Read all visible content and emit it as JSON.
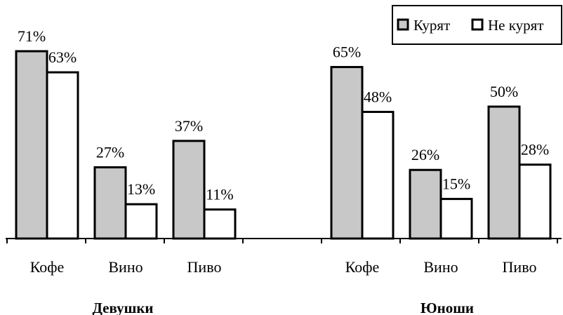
{
  "chart_data": {
    "type": "bar",
    "title": "",
    "xlabel": "",
    "ylabel": "",
    "ylim": [
      0,
      100
    ],
    "grid": false,
    "legend_position": "top-right",
    "groups": [
      {
        "name": "Девушки",
        "categories": [
          "Кофе",
          "Вино",
          "Пиво"
        ],
        "series": [
          {
            "name": "Курят",
            "values": [
              71,
              27,
              37
            ],
            "labels": [
              "71%",
              "27%",
              "37%"
            ]
          },
          {
            "name": "Не курят",
            "values": [
              63,
              13,
              11
            ],
            "labels": [
              "63%",
              "13%",
              "11%"
            ]
          }
        ]
      },
      {
        "name": "Юноши",
        "categories": [
          "Кофе",
          "Вино",
          "Пиво"
        ],
        "series": [
          {
            "name": "Курят",
            "values": [
              65,
              26,
              50
            ],
            "labels": [
              "65%",
              "26%",
              "50%"
            ]
          },
          {
            "name": "Не курят",
            "values": [
              48,
              15,
              28
            ],
            "labels": [
              "48%",
              "15%",
              "28%"
            ]
          }
        ]
      }
    ],
    "series_colors": {
      "Курят": "#c8c8c8",
      "Не курят": "#ffffff"
    }
  }
}
